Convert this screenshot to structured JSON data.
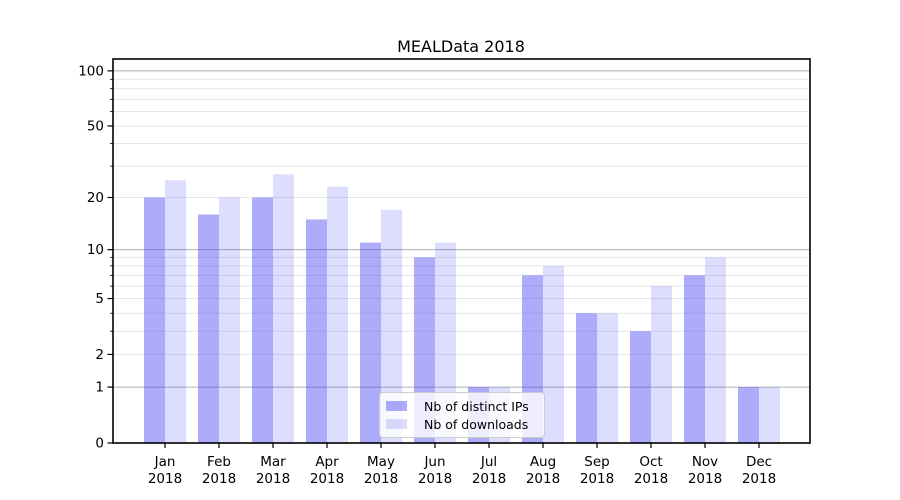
{
  "figure": {
    "background": "#ffffff"
  },
  "chart_data": {
    "type": "bar",
    "title": "MEALData 2018",
    "x_axis": {
      "months": [
        "Jan",
        "Feb",
        "Mar",
        "Apr",
        "May",
        "Jun",
        "Jul",
        "Aug",
        "Sep",
        "Oct",
        "Nov",
        "Dec"
      ],
      "year": "2018"
    },
    "series": [
      {
        "name": "Nb of distinct IPs",
        "color": "rgba(70,70,245,0.45)",
        "values": [
          20,
          16,
          20,
          15,
          11,
          9,
          1,
          7,
          4,
          3,
          7,
          1
        ]
      },
      {
        "name": "Nb of downloads",
        "color": "rgba(70,70,245,0.185)",
        "values": [
          25,
          20,
          27,
          23,
          17,
          11,
          1,
          8,
          4,
          6,
          9,
          1
        ]
      }
    ],
    "y_axis": {
      "scale": "log1p",
      "lim": [
        0,
        115
      ],
      "labeled_ticks": [
        100,
        50,
        20,
        10,
        5,
        2,
        1,
        0
      ],
      "minor_ticks": [
        90,
        80,
        70,
        60,
        40,
        30,
        9,
        8,
        7,
        6,
        4,
        3
      ],
      "gridline_values": [
        1,
        2,
        3,
        4,
        5,
        6,
        7,
        8,
        9,
        10,
        20,
        30,
        40,
        50,
        60,
        70,
        80,
        90,
        100
      ],
      "major_grid_values": [
        1,
        10,
        100
      ]
    },
    "legend": {
      "position": "lower center"
    },
    "colors": {
      "grid_major": "#b0b0b0",
      "grid_minor": "#e6e6e6",
      "axis": "#000000",
      "text": "#000000"
    }
  }
}
